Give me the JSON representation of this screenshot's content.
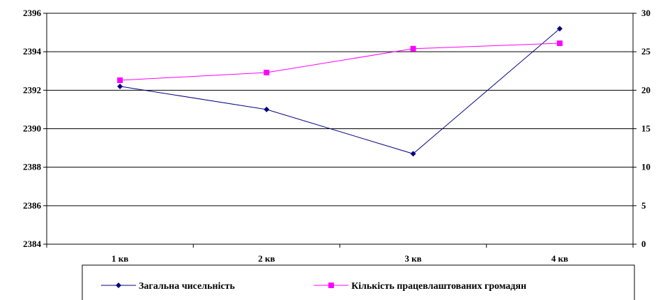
{
  "chart_data": {
    "type": "line",
    "categories": [
      "1 кв",
      "2 кв",
      "3 кв",
      "4 кв"
    ],
    "y_left": {
      "min": 2384,
      "max": 2396,
      "ticks": [
        2384,
        2386,
        2388,
        2390,
        2392,
        2394,
        2396
      ]
    },
    "y_right": {
      "min": 0,
      "max": 30,
      "ticks": [
        0,
        5,
        10,
        15,
        20,
        25,
        30
      ]
    },
    "grid": true,
    "legend_position": "bottom",
    "series": [
      {
        "name": "Загальна чисельність",
        "axis": "left",
        "color": "#000080",
        "marker": "diamond",
        "values": [
          2392.2,
          2391.0,
          2388.7,
          2395.2
        ]
      },
      {
        "name": "Кількість працевлаштованих громадян",
        "axis": "right",
        "color": "#FF00FF",
        "marker": "square",
        "values": [
          21.3,
          22.3,
          25.4,
          26.1
        ]
      }
    ]
  }
}
